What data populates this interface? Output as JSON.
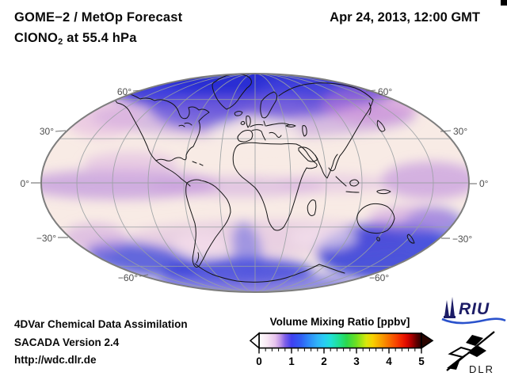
{
  "header": {
    "title_line1": "GOME−2 / MetOp Forecast",
    "species": "ClONO",
    "species_subscript": "2",
    "level_suffix": " at 55.4 hPa",
    "datetime": "Apr 24, 2013, 12:00 GMT"
  },
  "map": {
    "lat_labels": {
      "left": [
        "60°",
        "30°",
        "0°",
        "−30°",
        "−60°"
      ],
      "right": [
        "60°",
        "30°",
        "0°",
        "−30°",
        "−60°"
      ]
    }
  },
  "colorbar": {
    "title": "Volume Mixing Ratio [ppbv]",
    "min": 0,
    "max": 5,
    "tick_labels": [
      "0",
      "1",
      "2",
      "3",
      "4",
      "5"
    ],
    "gradient_stops": [
      [
        0.0,
        "#ffffff"
      ],
      [
        0.05,
        "#f8e8f4"
      ],
      [
        0.1,
        "#e6c2ee"
      ],
      [
        0.13,
        "#c096e8"
      ],
      [
        0.16,
        "#8060e8"
      ],
      [
        0.2,
        "#4040f0"
      ],
      [
        0.26,
        "#3060f4"
      ],
      [
        0.3,
        "#2e84f8"
      ],
      [
        0.36,
        "#30b4f8"
      ],
      [
        0.4,
        "#28ccf4"
      ],
      [
        0.44,
        "#20e0d8"
      ],
      [
        0.5,
        "#20e088"
      ],
      [
        0.54,
        "#2cd84c"
      ],
      [
        0.6,
        "#70e020"
      ],
      [
        0.66,
        "#d8e80c"
      ],
      [
        0.7,
        "#f8d000"
      ],
      [
        0.76,
        "#f89800"
      ],
      [
        0.8,
        "#f87000"
      ],
      [
        0.84,
        "#f84800"
      ],
      [
        0.88,
        "#f02000"
      ],
      [
        0.91,
        "#dc0800"
      ],
      [
        0.94,
        "#a80000"
      ],
      [
        0.97,
        "#600000"
      ],
      [
        1.0,
        "#2a0000"
      ]
    ]
  },
  "footer": {
    "line1": "4DVar Chemical Data Assimilation",
    "line2": "SACADA Version 2.4",
    "line3": "http://wdc.dlr.de"
  },
  "logos": {
    "riu": "RIU",
    "dlr": "DLR"
  },
  "colors": {
    "map_base": "#f8ebe5",
    "arctic_blue": "#3434d8",
    "tropical_purple": "#b586dc",
    "boundary_gray": "#7d7d7d"
  }
}
